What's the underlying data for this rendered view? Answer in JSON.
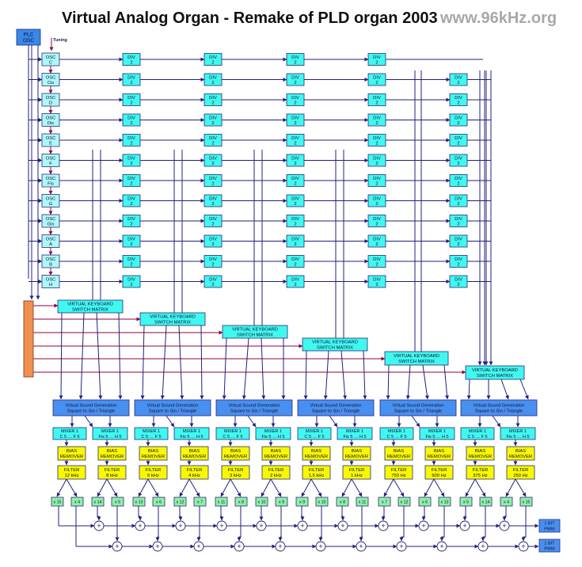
{
  "title": "Virtual Analog Organ - Remake of PLD organ 2003",
  "website": "www.96kHz.org",
  "plc_osc": [
    "PLC",
    "OSC"
  ],
  "tuning_label": "Tuning",
  "osc_prefix": "OSC",
  "notes": [
    "C",
    "Cis",
    "D",
    "Dis",
    "E",
    "F",
    "Fis",
    "G",
    "Gis",
    "A",
    "B",
    "H"
  ],
  "div_label": [
    "DIV",
    "2"
  ],
  "keyboard_matrix": [
    "VIRTUAL KEYBOARD",
    "SWITCH MATRIX"
  ],
  "sound_gen": [
    "Virtual Sound Generation",
    "Square to Sin / Triangle"
  ],
  "mixer_a": [
    "MIXER 1",
    "C 5 … F 5"
  ],
  "mixer_b": [
    "MIXER 1",
    "Fis 5 … H 5"
  ],
  "bias": [
    "BIAS",
    "REMOVER"
  ],
  "filter_label": "FILTER",
  "filters": [
    "12 kHz",
    "8 kHz",
    "6 kHz",
    "4 kHz",
    "3 kHz",
    "2 kHz",
    "1,5 kHz",
    "1 kHz",
    "750 Hz",
    "500 Hz",
    "375 Hz",
    "250 Hz"
  ],
  "gains": [
    "x 15",
    "x 4",
    "x 14",
    "x 5",
    "x 13",
    "x 6",
    "x 12",
    "x 7",
    "x 11",
    "x 8",
    "x 10",
    "x 9",
    "x 9",
    "x 10",
    "x 8",
    "x 11",
    "x 7",
    "x 12",
    "x 6",
    "x 13",
    "x 5",
    "x 14",
    "x 4",
    "x 15"
  ],
  "pwm": [
    "1 BIT",
    "PWM"
  ],
  "sum_symbol": "+",
  "colors": {
    "osc": "#aef8f8",
    "div": "#40f8f0",
    "matrix": "#40f8f0",
    "soundgen": "#4890f0",
    "mixer": "#40f8f0",
    "bias": "#f8f800",
    "filter": "#f8f800",
    "gain": "#90f0a8",
    "plc": "#3888e8",
    "input_bar": "#f09050",
    "keyline": "#900040",
    "line": "#202080"
  }
}
